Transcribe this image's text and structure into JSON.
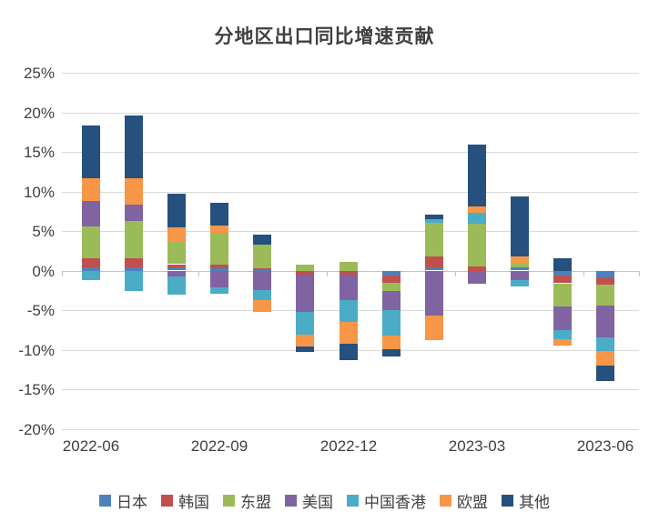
{
  "title": "分地区出口同比增速贡献",
  "chart_data": {
    "type": "bar",
    "stacked": true,
    "title": "分地区出口同比增速贡献",
    "categories": [
      "2022-06",
      "2022-07",
      "2022-08",
      "2022-09",
      "2022-10",
      "2022-11",
      "2022-12",
      "2023-01",
      "2023-02",
      "2023-03",
      "2023-04",
      "2023-05",
      "2023-06"
    ],
    "x_tick_label_interval": 3,
    "x_tick_labels_shown": [
      "2022-06",
      "2022-09",
      "2022-12",
      "2023-03",
      "2023-06"
    ],
    "series": [
      {
        "name": "日本",
        "color": "#4E80BC",
        "values": [
          0.45,
          0.45,
          0.4,
          0.3,
          0.1,
          0,
          0,
          -0.6,
          0.4,
          0,
          0.5,
          -0.65,
          -0.8
        ]
      },
      {
        "name": "韩国",
        "color": "#C0504D",
        "values": [
          1.1,
          1.15,
          0.4,
          0.45,
          0.2,
          -0.45,
          -0.45,
          -0.9,
          1.4,
          0.55,
          0,
          -0.95,
          -0.95
        ]
      },
      {
        "name": "东盟",
        "color": "#9BBB59",
        "values": [
          4.0,
          4.7,
          2.8,
          4.05,
          3.0,
          0.8,
          1.15,
          -1.0,
          4.3,
          5.45,
          0.55,
          -2.85,
          -2.65
        ]
      },
      {
        "name": "美国",
        "color": "#8064A2",
        "values": [
          3.25,
          2.05,
          -0.7,
          -2.1,
          -2.4,
          -4.75,
          -3.25,
          -2.5,
          -5.7,
          -1.6,
          -1.2,
          -3.05,
          -4.0
        ]
      },
      {
        "name": "中国香港",
        "color": "#4BACC6",
        "values": [
          -1.1,
          -2.5,
          -2.3,
          -0.8,
          -1.35,
          -2.85,
          -2.8,
          -3.2,
          0.45,
          1.35,
          -0.8,
          -1.15,
          -1.7
        ]
      },
      {
        "name": "欧盟",
        "color": "#F79646",
        "values": [
          2.85,
          3.35,
          1.85,
          0.95,
          -1.5,
          -1.5,
          -2.75,
          -1.7,
          -3.1,
          0.75,
          0.75,
          -0.85,
          -1.9
        ]
      },
      {
        "name": "其他",
        "color": "#26507D",
        "values": [
          6.7,
          7.95,
          4.3,
          2.85,
          1.25,
          -0.7,
          -2.1,
          -0.9,
          0.55,
          7.8,
          7.55,
          1.6,
          -1.9
        ]
      }
    ],
    "ylim": [
      -20,
      25
    ],
    "y_tick_step": 5,
    "y_tick_labels": [
      "25%",
      "20%",
      "15%",
      "10%",
      "5%",
      "0%",
      "-5%",
      "-10%",
      "-15%",
      "-20%"
    ],
    "grid": true,
    "legend_position": "bottom",
    "colors": {
      "grid": "#d9d9d9",
      "axis": "#c3c3c3",
      "text": "#404040"
    }
  }
}
